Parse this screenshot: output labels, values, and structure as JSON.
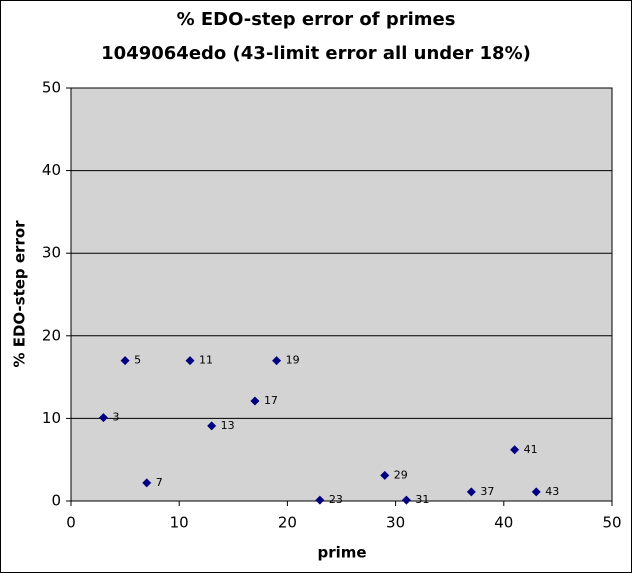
{
  "chart_data": {
    "type": "scatter",
    "title": "% EDO-step error of primes",
    "subtitle": "1049064edo (43-limit error all under 18%)",
    "x_label": "prime",
    "y_label": "% EDO-step error",
    "series": [
      {
        "name": "% EDO-step error",
        "color": "#000080",
        "x": [
          3,
          5,
          7,
          11,
          13,
          17,
          19,
          23,
          29,
          31,
          37,
          41,
          43
        ],
        "values": [
          10.1,
          17,
          2.2,
          17,
          9.1,
          12.1,
          17,
          0.1,
          3.1,
          0.1,
          1.1,
          6.2,
          1.1
        ]
      }
    ],
    "xlim": [
      0,
      50
    ],
    "xticks": [
      0,
      10,
      20,
      30,
      40,
      50
    ],
    "ylim": [
      0,
      50
    ],
    "yticks": [
      0,
      10,
      20,
      30,
      40,
      50
    ],
    "grid": true
  }
}
